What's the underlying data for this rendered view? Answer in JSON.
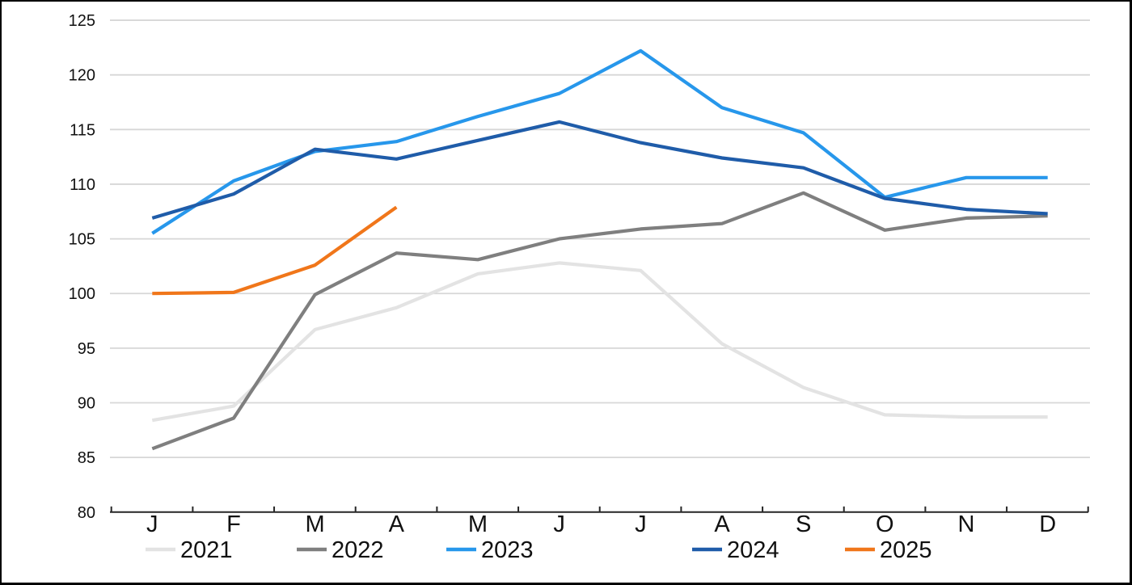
{
  "chart_data": {
    "type": "line",
    "title": "",
    "xlabel": "",
    "ylabel": "",
    "categories": [
      "J",
      "F",
      "M",
      "A",
      "M",
      "J",
      "J",
      "A",
      "S",
      "O",
      "N",
      "D"
    ],
    "series": [
      {
        "name": "2021",
        "color": "#E3E3E3",
        "values": [
          88.4,
          89.7,
          96.7,
          98.7,
          101.8,
          102.8,
          102.1,
          95.4,
          91.4,
          88.9,
          88.7,
          88.7
        ]
      },
      {
        "name": "2022",
        "color": "#7F7F7F",
        "values": [
          85.8,
          88.6,
          99.9,
          103.7,
          103.1,
          105.0,
          105.9,
          106.4,
          109.2,
          105.8,
          106.9,
          107.1
        ]
      },
      {
        "name": "2023",
        "color": "#2797EB",
        "values": [
          105.5,
          110.3,
          113.0,
          113.9,
          116.2,
          118.3,
          122.2,
          117.0,
          114.7,
          108.8,
          110.6,
          110.6
        ]
      },
      {
        "name": "2024",
        "color": "#1F5CA9",
        "values": [
          106.9,
          109.1,
          113.2,
          112.3,
          114.0,
          115.7,
          113.8,
          112.4,
          111.5,
          108.7,
          107.7,
          107.3
        ]
      },
      {
        "name": "2025",
        "color": "#F0761A",
        "values": [
          100.0,
          100.1,
          102.6,
          107.9
        ]
      }
    ],
    "ylim": [
      80,
      125
    ],
    "ytick_step": 5,
    "ytick_labels": [
      "80",
      "85",
      "90",
      "95",
      "100",
      "105",
      "110",
      "115",
      "120",
      "125"
    ],
    "grid": "horizontal",
    "legend_position": "bottom",
    "legend_labels": [
      "2021",
      "2022",
      "2023",
      "2024",
      "2025"
    ]
  },
  "colors": {
    "background": "#FFFFFF",
    "border": "#000000",
    "gridline": "#D7D7D7",
    "axis": "#262626",
    "text": "#111111"
  }
}
